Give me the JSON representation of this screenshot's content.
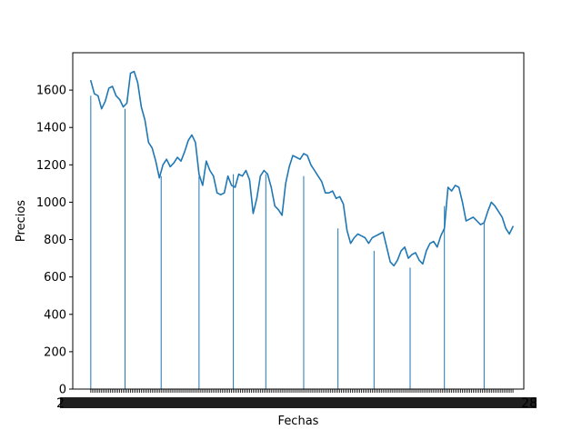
{
  "chart_data": {
    "type": "line",
    "title": "",
    "xlabel": "Fechas",
    "ylabel": "Precios",
    "ylim": [
      0,
      1800
    ],
    "xlim": [
      -10,
      240
    ],
    "yticks": [
      0,
      200,
      400,
      600,
      800,
      1000,
      1200,
      1400,
      1600
    ],
    "grid": false,
    "legend": "none",
    "xtick_labels_overlapping": true,
    "xtick_label_left_fragment": "2",
    "xtick_label_right_fragment": "28",
    "line_color": "#1f77b4",
    "bar_color": "#1f77b4",
    "series": [
      {
        "kind": "line",
        "x": [
          0,
          2,
          4,
          6,
          8,
          10,
          12,
          14,
          16,
          18,
          20,
          22,
          24,
          26,
          28,
          30,
          32,
          34,
          36,
          38,
          40,
          42,
          44,
          46,
          48,
          50,
          52,
          54,
          56,
          58,
          60,
          62,
          64,
          66,
          68,
          70,
          72,
          74,
          76,
          78,
          80,
          82,
          84,
          86,
          88,
          90,
          92,
          94,
          96,
          98,
          100,
          102,
          104,
          106,
          108,
          110,
          112,
          114,
          116,
          118,
          120,
          122,
          124,
          126,
          128,
          130,
          132,
          134,
          136,
          138,
          140,
          142,
          144,
          146,
          148,
          150,
          152,
          154,
          156,
          158,
          160,
          162,
          164,
          166,
          168,
          170,
          172,
          174,
          176,
          178,
          180,
          182,
          184,
          186,
          188,
          190,
          192,
          194,
          196,
          198,
          200,
          202,
          204,
          206,
          208,
          210,
          212,
          214,
          216,
          218,
          220,
          222,
          224,
          226,
          228,
          230,
          232,
          234
        ],
        "y": [
          1650,
          1580,
          1570,
          1500,
          1540,
          1610,
          1620,
          1570,
          1550,
          1510,
          1530,
          1690,
          1700,
          1640,
          1510,
          1440,
          1320,
          1290,
          1220,
          1130,
          1200,
          1230,
          1190,
          1210,
          1240,
          1220,
          1270,
          1330,
          1360,
          1320,
          1150,
          1090,
          1220,
          1170,
          1140,
          1050,
          1040,
          1050,
          1140,
          1090,
          1080,
          1150,
          1140,
          1170,
          1120,
          940,
          1020,
          1140,
          1170,
          1150,
          1080,
          980,
          960,
          930,
          1100,
          1190,
          1250,
          1240,
          1230,
          1260,
          1250,
          1200,
          1170,
          1140,
          1110,
          1050,
          1050,
          1060,
          1020,
          1030,
          990,
          850,
          780,
          810,
          830,
          820,
          810,
          780,
          810,
          820,
          830,
          840,
          760,
          680,
          660,
          690,
          740,
          760,
          700,
          720,
          730,
          690,
          670,
          740,
          780,
          790,
          760,
          820,
          860,
          1080,
          1060,
          1090,
          1080,
          1000,
          900,
          910,
          920,
          900,
          880,
          890,
          950,
          1000,
          980,
          950,
          920,
          860,
          830,
          870
        ]
      },
      {
        "kind": "bar",
        "x": [
          0,
          19,
          39,
          60,
          79,
          97,
          118,
          137,
          157,
          177,
          196,
          218
        ],
        "values": [
          1570,
          1500,
          1140,
          1140,
          1150,
          1150,
          1140,
          860,
          740,
          650,
          980,
          900
        ]
      }
    ]
  }
}
